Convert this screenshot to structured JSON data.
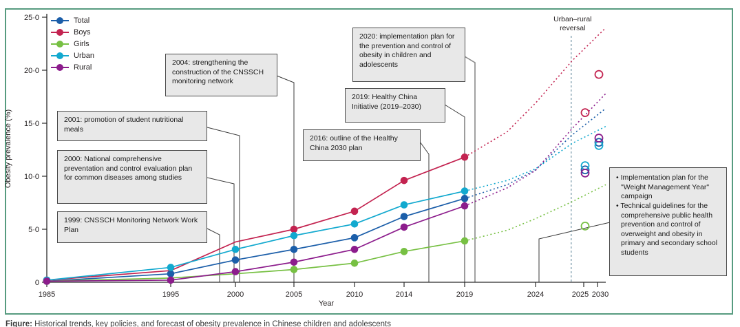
{
  "figure_caption": {
    "prefix": "Figure:",
    "rest": " Historical trends, key policies, and forecast of obesity prevalence in Chinese children and adolescents"
  },
  "axes": {
    "y_label": "Obesity prevalence (%)",
    "x_label": "Year",
    "y_ticks": [
      {
        "v": 0,
        "label": "0"
      },
      {
        "v": 5,
        "label": "5·0"
      },
      {
        "v": 10,
        "label": "10·0"
      },
      {
        "v": 15,
        "label": "15·0"
      },
      {
        "v": 20,
        "label": "20·0"
      },
      {
        "v": 25,
        "label": "25·0"
      }
    ],
    "x_tick_years": [
      1985,
      1995,
      2000,
      2005,
      2010,
      2014,
      2019,
      2024,
      2025,
      2030
    ],
    "ylim": [
      0,
      25
    ]
  },
  "legend": [
    "Total",
    "Boys",
    "Girls",
    "Urban",
    "Rural"
  ],
  "annotations": {
    "a1999": "1999: CNSSCH Monitoring Network Work Plan",
    "a2000": "2000: National comprehensive preventation and control evaluation plan for common diseases among studies",
    "a2001": "2001: promotion of student nutritional meals",
    "a2004": "2004: strengthening the construction of the CNSSCH monitoring network",
    "a2016": "2016: outline of the Healthy China 2030 plan",
    "a2019": "2019: Healthy China Initiative (2019–2030)",
    "a2020": "2020: implementation plan for the prevention and control of obesity in children and adolescents",
    "recent_bullet1": "• Implementation plan for the \"Weight Management Year\" campaign",
    "recent_bullet2": "• Technical guidelines for the comprehensive public health prevention and control of overweight and obesity in primary and secondary school students",
    "reversal_line1": "Urban–rural",
    "reversal_line2": "reversal",
    "reversal_year": 2024.74
  },
  "chart_data": {
    "type": "line",
    "title": "",
    "xlabel": "Year",
    "ylabel": "Obesity prevalence (%)",
    "ylim": [
      0,
      25
    ],
    "grid": false,
    "legend_position": "top-left",
    "survey_years": [
      1985,
      1995,
      2000,
      2005,
      2010,
      2014,
      2019
    ],
    "series": [
      {
        "name": "Total",
        "color": "#1b5ea9",
        "values": [
          0.1,
          0.8,
          2.1,
          3.1,
          4.2,
          6.2,
          7.9
        ],
        "no_marker_years": [],
        "projection": [
          [
            2019,
            7.9
          ],
          [
            2022,
            9.2
          ],
          [
            2024,
            10.6
          ],
          [
            2024.76,
            13.9
          ],
          [
            2033,
            16.4
          ]
        ],
        "forecast_circles": [
          [
            2025,
            10.6
          ],
          [
            2030,
            13.2
          ]
        ]
      },
      {
        "name": "Boys",
        "color": "#c32350",
        "values": [
          0.2,
          1.1,
          3.8,
          5.0,
          6.7,
          9.6,
          11.8
        ],
        "no_marker_years": [
          1995,
          2000
        ],
        "projection": [
          [
            2019,
            11.8
          ],
          [
            2022,
            14.2
          ],
          [
            2024,
            16.9
          ],
          [
            2024.76,
            20.9
          ],
          [
            2033,
            24.0
          ]
        ],
        "forecast_circles": [
          [
            2025,
            16.0
          ],
          [
            2030,
            19.6
          ]
        ]
      },
      {
        "name": "Girls",
        "color": "#77c043",
        "values": [
          0.1,
          0.4,
          0.8,
          1.2,
          1.8,
          2.9,
          3.9
        ],
        "no_marker_years": [
          1995,
          2000
        ],
        "projection": [
          [
            2019,
            3.9
          ],
          [
            2022,
            4.9
          ],
          [
            2024,
            6.0
          ],
          [
            2024.76,
            7.6
          ],
          [
            2033,
            9.2
          ]
        ],
        "forecast_circles": [
          [
            2025,
            5.3
          ]
        ]
      },
      {
        "name": "Urban",
        "color": "#12a9cf",
        "values": [
          0.2,
          1.4,
          3.1,
          4.4,
          5.5,
          7.3,
          8.6
        ],
        "no_marker_years": [],
        "projection": [
          [
            2019,
            8.6
          ],
          [
            2022,
            9.6
          ],
          [
            2024,
            10.7
          ],
          [
            2024.76,
            13.1
          ],
          [
            2033,
            14.7
          ]
        ],
        "forecast_circles": [
          [
            2025,
            11.0
          ],
          [
            2030,
            12.9
          ]
        ]
      },
      {
        "name": "Rural",
        "color": "#8c1c8c",
        "values": [
          0.1,
          0.2,
          1.0,
          1.9,
          3.1,
          5.2,
          7.2
        ],
        "no_marker_years": [],
        "projection": [
          [
            2019,
            7.2
          ],
          [
            2022,
            8.9
          ],
          [
            2024,
            10.55
          ],
          [
            2024.76,
            14.5
          ],
          [
            2033,
            17.8
          ]
        ],
        "forecast_circles": [
          [
            2025,
            10.3
          ],
          [
            2030,
            13.6
          ]
        ]
      }
    ]
  }
}
